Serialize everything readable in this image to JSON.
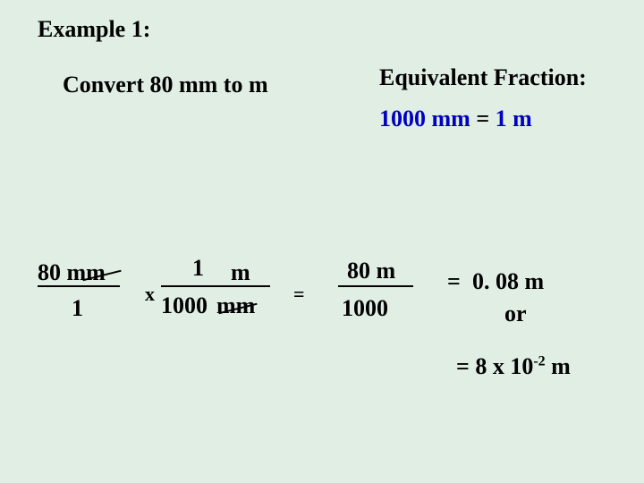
{
  "title": "Example 1:",
  "convert": "Convert  80 mm  to  m",
  "equivalent": {
    "title": "Equivalent Fraction:",
    "lhs": "1000 mm",
    "eq": "  =  ",
    "rhs": "1 m"
  },
  "frac1": {
    "num": "80 mm",
    "den": "1"
  },
  "op_times": "x",
  "frac2": {
    "num_val": "1",
    "num_unit": "m",
    "den_val": "1000",
    "den_unit": "mm"
  },
  "op_eq1": "=",
  "frac3": {
    "num": "80 m",
    "den": "1000"
  },
  "op_eq2": "=",
  "result_decimal": " 0. 08 m",
  "or": "or",
  "sci_prefix": "= 8 x 10",
  "sci_exp": "-2",
  "sci_suffix": " m",
  "colors": {
    "background": "#e0eee4",
    "text": "#000000",
    "accent": "#0000c0"
  },
  "typography": {
    "font_family": "Times New Roman",
    "base_fontsize": 26,
    "weight": "bold"
  }
}
